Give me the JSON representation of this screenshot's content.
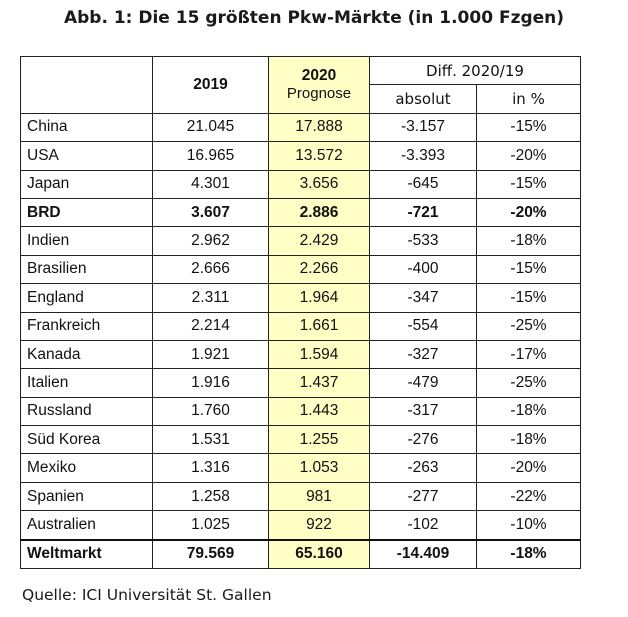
{
  "title": "Abb. 1: Die 15 größten Pkw-Märkte (in 1.000 Fzgen)",
  "header": {
    "col_2019": "2019",
    "col_2020": "2020",
    "col_2020_sub": "Prognose",
    "diff": "Diff. 2020/19",
    "absolut": "absolut",
    "pct": "in %"
  },
  "colors": {
    "highlight": "#ffffc5",
    "border": "#222222"
  },
  "rows": [
    {
      "name": "China",
      "v2019": "21.045",
      "v2020": "17.888",
      "abs": "-3.157",
      "pct": "-15%"
    },
    {
      "name": "USA",
      "v2019": "16.965",
      "v2020": "13.572",
      "abs": "-3.393",
      "pct": "-20%"
    },
    {
      "name": "Japan",
      "v2019": "4.301",
      "v2020": "3.656",
      "abs": "-645",
      "pct": "-15%"
    },
    {
      "name": "BRD",
      "v2019": "3.607",
      "v2020": "2.886",
      "abs": "-721",
      "pct": "-20%"
    },
    {
      "name": "Indien",
      "v2019": "2.962",
      "v2020": "2.429",
      "abs": "-533",
      "pct": "-18%"
    },
    {
      "name": "Brasilien",
      "v2019": "2.666",
      "v2020": "2.266",
      "abs": "-400",
      "pct": "-15%"
    },
    {
      "name": "England",
      "v2019": "2.311",
      "v2020": "1.964",
      "abs": "-347",
      "pct": "-15%"
    },
    {
      "name": "Frankreich",
      "v2019": "2.214",
      "v2020": "1.661",
      "abs": "-554",
      "pct": "-25%"
    },
    {
      "name": "Kanada",
      "v2019": "1.921",
      "v2020": "1.594",
      "abs": "-327",
      "pct": "-17%"
    },
    {
      "name": "Italien",
      "v2019": "1.916",
      "v2020": "1.437",
      "abs": "-479",
      "pct": "-25%"
    },
    {
      "name": "Russland",
      "v2019": "1.760",
      "v2020": "1.443",
      "abs": "-317",
      "pct": "-18%"
    },
    {
      "name": "Süd Korea",
      "v2019": "1.531",
      "v2020": "1.255",
      "abs": "-276",
      "pct": "-18%"
    },
    {
      "name": "Mexiko",
      "v2019": "1.316",
      "v2020": "1.053",
      "abs": "-263",
      "pct": "-20%"
    },
    {
      "name": "Spanien",
      "v2019": "1.258",
      "v2020": "981",
      "abs": "-277",
      "pct": "-22%"
    },
    {
      "name": "Australien",
      "v2019": "1.025",
      "v2020": "922",
      "abs": "-102",
      "pct": "-10%"
    }
  ],
  "total": {
    "name": "Weltmarkt",
    "v2019": "79.569",
    "v2020": "65.160",
    "abs": "-14.409",
    "pct": "-18%"
  },
  "source": "Quelle: ICI Universität St. Gallen"
}
